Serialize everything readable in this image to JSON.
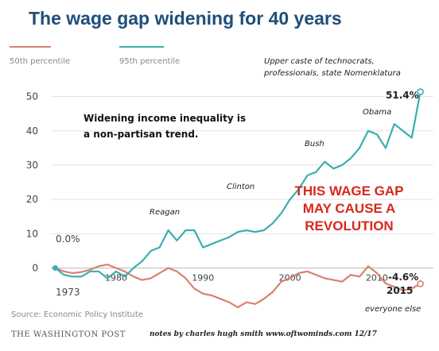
{
  "chart_data": {
    "type": "line",
    "title": "The wage gap widening for 40 years",
    "x": [
      1973,
      1974,
      1975,
      1976,
      1977,
      1978,
      1979,
      1980,
      1981,
      1982,
      1983,
      1984,
      1985,
      1986,
      1987,
      1988,
      1989,
      1990,
      1991,
      1992,
      1993,
      1994,
      1995,
      1996,
      1997,
      1998,
      1999,
      2000,
      2001,
      2002,
      2003,
      2004,
      2005,
      2006,
      2007,
      2008,
      2009,
      2010,
      2011,
      2012,
      2013,
      2014,
      2015
    ],
    "series": [
      {
        "name": "50th percentile",
        "color": "#d9806f",
        "values": [
          0,
          -1,
          -1.5,
          -1.2,
          -0.5,
          0.5,
          1,
          0,
          -1,
          -2.5,
          -3.5,
          -3,
          -1.5,
          0,
          -1,
          -3,
          -6,
          -7.5,
          -8,
          -9,
          -10,
          -11.5,
          -10,
          -10.5,
          -9,
          -7,
          -4,
          -3,
          -1.5,
          -1,
          -2,
          -3,
          -3.5,
          -4,
          -2,
          -2.5,
          0.5,
          -1.5,
          -4.5,
          -5.5,
          -6.5,
          -6,
          -4.6
        ]
      },
      {
        "name": "95th percentile",
        "color": "#3aaeb0",
        "values": [
          0,
          -2,
          -2.5,
          -2.5,
          -1,
          -1,
          -3,
          -1,
          -2.5,
          0,
          2,
          5,
          6,
          11,
          8,
          11,
          11,
          6,
          7,
          8,
          9,
          10.5,
          11,
          10.5,
          11,
          13,
          16,
          20,
          23,
          27,
          28,
          31,
          29,
          30,
          32,
          35,
          40,
          39,
          35,
          42,
          40,
          38,
          51.4
        ]
      }
    ],
    "ylim": [
      -8,
      55
    ],
    "xlim": [
      1972.5,
      2016.5
    ],
    "yticks": [
      "0",
      "10",
      "20",
      "30",
      "40",
      "50"
    ],
    "xticks": [
      "1980",
      "1990",
      "2000",
      "2010"
    ],
    "grid": true,
    "legend": "top-left",
    "annotations": {
      "upper_caste_line1": "Upper caste of technocrats,",
      "upper_caste_line2": "professionals, state Nomenklatura",
      "inequality_line1": "Widening income inequality is",
      "inequality_line2": "a  non-partisan trend.",
      "reagan": "Reagan",
      "clinton": "Clinton",
      "bush": "Bush",
      "obama": "Obama",
      "start_value": "0.0%",
      "start_year": "1973",
      "end_top": "51.4%",
      "end_bottom": "-4.6%",
      "end_year": "2015",
      "everyone_else": "everyone else",
      "red_line1": "THIS WAGE GAP",
      "red_line2": "MAY CAUSE A",
      "red_line3": "REVOLUTION"
    },
    "source": "Source: Economic Policy Institute",
    "publisher": "THE WASHINGTON POST",
    "credit": "notes by charles hugh smith   www.oftwominds.com  12/17"
  }
}
